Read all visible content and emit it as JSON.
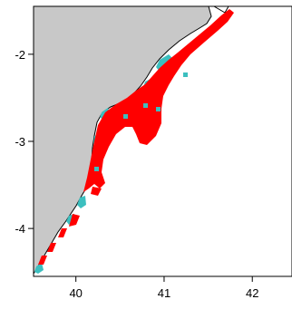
{
  "map": {
    "x_ticks": [
      {
        "value": 40,
        "label": "40"
      },
      {
        "value": 41,
        "label": "41"
      },
      {
        "value": 42,
        "label": "42"
      }
    ],
    "y_ticks": [
      {
        "value": -2,
        "label": "-2"
      },
      {
        "value": -3,
        "label": "-3"
      },
      {
        "value": -4,
        "label": "-4"
      }
    ],
    "xlim": [
      39.52,
      42.45
    ],
    "ylim": [
      -4.55,
      -1.45
    ],
    "colors": {
      "land": "#c8c8c8",
      "sea": "#ffffff",
      "coastline": "#000000",
      "predicted_habitat": "#ff0000",
      "observed_habitat": "#3cbfbf"
    }
  }
}
